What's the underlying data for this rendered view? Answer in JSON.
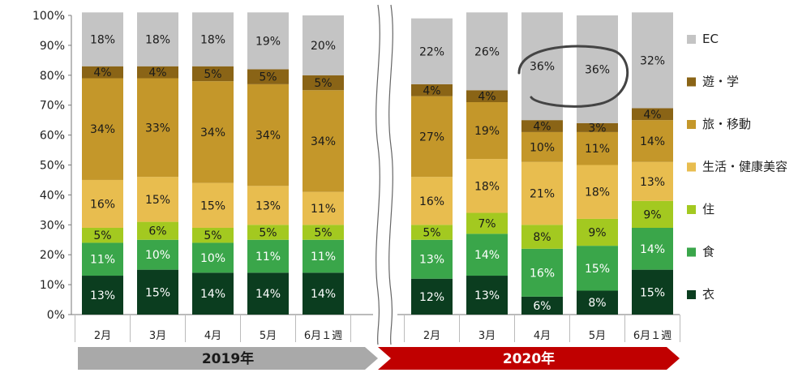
{
  "chart_data": {
    "type": "bar",
    "stacked": true,
    "y_axis": {
      "min": 0,
      "max": 100,
      "step": 10,
      "tick_suffix": "%"
    },
    "series": [
      {
        "name": "衣",
        "color": "#0b3d1f"
      },
      {
        "name": "食",
        "color": "#3aa64a"
      },
      {
        "name": "住",
        "color": "#a3c920"
      },
      {
        "name": "生活・健康美容",
        "color": "#e8bd4f"
      },
      {
        "name": "旅・移動",
        "color": "#c4972a"
      },
      {
        "name": "遊・学",
        "color": "#8a6416"
      },
      {
        "name": "EC",
        "color": "#c4c4c4"
      }
    ],
    "groups": [
      {
        "year_label": "2019年",
        "banner_color": "#a9a9a9",
        "year_text_color": "#1a1a1a",
        "categories": [
          "2月",
          "3月",
          "4月",
          "5月",
          "6月１週"
        ],
        "values": [
          [
            13,
            11,
            5,
            16,
            34,
            4,
            18
          ],
          [
            15,
            10,
            6,
            15,
            33,
            4,
            18
          ],
          [
            14,
            10,
            5,
            15,
            34,
            5,
            18
          ],
          [
            14,
            11,
            5,
            13,
            34,
            5,
            19
          ],
          [
            14,
            11,
            5,
            11,
            34,
            5,
            20
          ]
        ]
      },
      {
        "year_label": "2020年",
        "banner_color": "#c00000",
        "year_text_color": "#ffffff",
        "categories": [
          "2月",
          "3月",
          "4月",
          "5月",
          "6月１週"
        ],
        "values": [
          [
            12,
            13,
            5,
            16,
            27,
            4,
            22
          ],
          [
            13,
            14,
            7,
            18,
            19,
            4,
            26
          ],
          [
            6,
            16,
            8,
            21,
            10,
            4,
            36
          ],
          [
            8,
            15,
            9,
            18,
            11,
            3,
            36
          ],
          [
            15,
            14,
            9,
            13,
            14,
            4,
            32
          ]
        ]
      }
    ],
    "legend_order": [
      "EC",
      "遊・学",
      "旅・移動",
      "生活・健康美容",
      "住",
      "食",
      "衣"
    ],
    "legend_position": "right",
    "grid": false,
    "annotation": "circle highlighting EC share in 2020 April and May"
  }
}
